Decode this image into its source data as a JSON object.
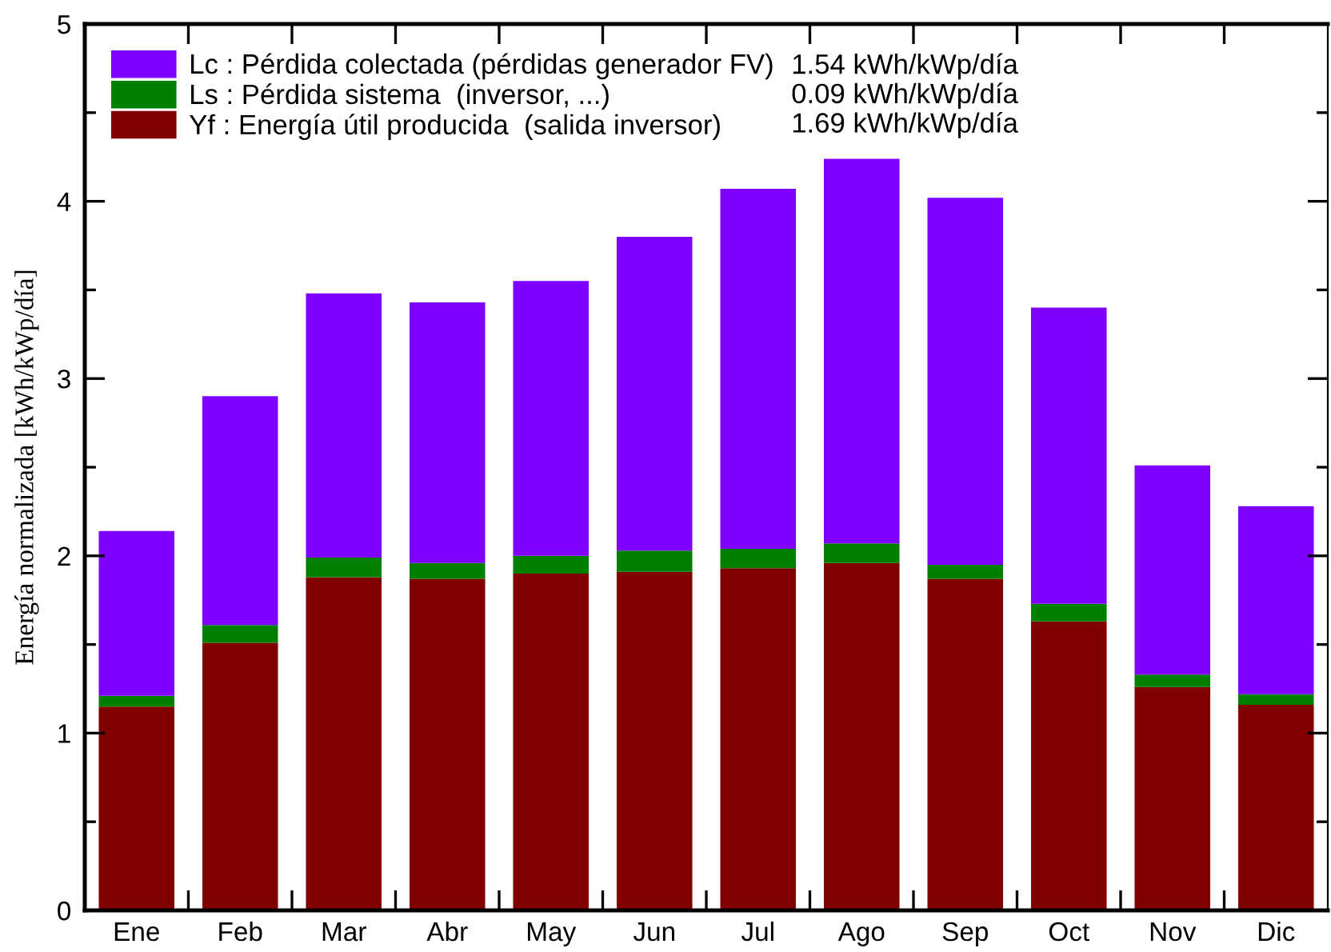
{
  "chart_data": {
    "type": "bar",
    "stacked": true,
    "ylabel": "Energía normalizada [kWh/kWp/día]",
    "categories": [
      "Ene",
      "Feb",
      "Mar",
      "Abr",
      "May",
      "Jun",
      "Jul",
      "Ago",
      "Sep",
      "Oct",
      "Nov",
      "Dic"
    ],
    "series": [
      {
        "name": "Yf : Energía útil producida  (salida inversor)",
        "color": "#800000",
        "values": [
          1.15,
          1.51,
          1.88,
          1.87,
          1.9,
          1.91,
          1.93,
          1.96,
          1.87,
          1.63,
          1.26,
          1.16
        ]
      },
      {
        "name": "Ls : Pérdida sistema  (inversor, ...)",
        "color": "#008000",
        "values": [
          0.06,
          0.1,
          0.11,
          0.09,
          0.1,
          0.12,
          0.11,
          0.11,
          0.08,
          0.1,
          0.07,
          0.06
        ]
      },
      {
        "name": "Lc : Pérdida colectada (pérdidas generador FV)",
        "color": "#7f00ff",
        "values": [
          0.93,
          1.29,
          1.49,
          1.47,
          1.55,
          1.77,
          2.03,
          2.17,
          2.07,
          1.67,
          1.18,
          1.06
        ]
      }
    ],
    "ylim": [
      0,
      5
    ],
    "yticks": [
      0,
      {
        "value": 0.5,
        "label": null
      },
      1,
      {
        "value": 1.5,
        "label": null
      },
      2,
      {
        "value": 2.5,
        "label": null
      },
      3,
      {
        "value": 3.5,
        "label": null
      },
      4,
      {
        "value": 4.5,
        "label": null
      },
      5
    ],
    "legend": "top left",
    "annotations": [
      "1.54 kWh/kWp/día",
      "0.09 kWh/kWp/día",
      "1.69 kWh/kWp/día"
    ]
  }
}
